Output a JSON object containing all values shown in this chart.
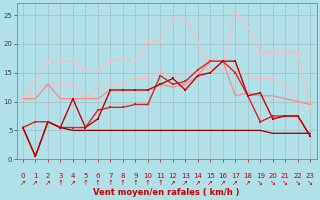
{
  "title": "",
  "xlabel": "Vent moyen/en rafales ( km/h )",
  "ylabel": "",
  "xlim": [
    -0.5,
    23.5
  ],
  "ylim": [
    0,
    27
  ],
  "yticks": [
    0,
    5,
    10,
    15,
    20,
    25
  ],
  "xticks": [
    0,
    1,
    2,
    3,
    4,
    5,
    6,
    7,
    8,
    9,
    10,
    11,
    12,
    13,
    14,
    15,
    16,
    17,
    18,
    19,
    20,
    21,
    22,
    23
  ],
  "xticklabels": [
    "0",
    "1",
    "2",
    "3",
    "4",
    "5",
    "6",
    "7",
    "8",
    "9",
    "10",
    "11",
    "12",
    "13",
    "14",
    "15",
    "16",
    "17",
    "18",
    "19",
    "20",
    "21",
    "22",
    "23"
  ],
  "background_color": "#b0e0e8",
  "grid_color": "#999999",
  "series": [
    {
      "name": "light_pink_high",
      "x": [
        0,
        1,
        2,
        3,
        4,
        5,
        6,
        7,
        8,
        9,
        10,
        11,
        12,
        13,
        14,
        15,
        16,
        17,
        18,
        19,
        20,
        21,
        22,
        23
      ],
      "y": [
        10.5,
        12,
        13,
        13,
        13,
        10.5,
        12.5,
        13,
        13,
        14,
        14,
        15.5,
        14,
        15,
        14.5,
        17.5,
        17,
        15.5,
        14.5,
        14,
        14,
        13,
        10,
        9.5
      ],
      "color": "#ffbbbb",
      "linewidth": 0.9,
      "marker": null,
      "markersize": 0,
      "alpha": 1.0
    },
    {
      "name": "light_pink_high2",
      "x": [
        0,
        2,
        3,
        4,
        5,
        6,
        7,
        8,
        9,
        10,
        11,
        12,
        13,
        14,
        15,
        16,
        17,
        18,
        19,
        20,
        21,
        22,
        23
      ],
      "y": [
        10.5,
        17,
        17,
        17,
        15.5,
        15.5,
        17,
        17.5,
        17,
        20.5,
        20.5,
        24.5,
        24,
        20.5,
        15.5,
        15.5,
        25.5,
        23,
        18.5,
        18.5,
        18.5,
        18.5,
        9
      ],
      "color": "#ffbbbb",
      "linewidth": 0.9,
      "marker": "D",
      "markersize": 1.8,
      "alpha": 1.0
    },
    {
      "name": "medium_pink",
      "x": [
        0,
        1,
        2,
        3,
        4,
        5,
        6,
        7,
        8,
        9,
        10,
        11,
        12,
        13,
        14,
        15,
        16,
        17,
        18,
        19,
        20,
        21,
        22,
        23
      ],
      "y": [
        10.5,
        10.5,
        13,
        10.5,
        10.5,
        10.5,
        10.5,
        12,
        12,
        12,
        12,
        13,
        12.5,
        13,
        14.5,
        17,
        17,
        11,
        11.5,
        11,
        11,
        10.5,
        10,
        9.5
      ],
      "color": "#ff8888",
      "linewidth": 0.9,
      "marker": null,
      "markersize": 0,
      "alpha": 1.0
    },
    {
      "name": "red_with_markers",
      "x": [
        0,
        1,
        2,
        3,
        4,
        5,
        6,
        7,
        8,
        9,
        10,
        11,
        12,
        13,
        14,
        15,
        16,
        17,
        18,
        19,
        20,
        21,
        22,
        23
      ],
      "y": [
        5.5,
        6.5,
        6.5,
        5.5,
        5.5,
        5.5,
        8.5,
        9,
        9,
        9.5,
        9.5,
        14.5,
        13,
        13.5,
        15.5,
        17,
        17,
        15,
        11,
        6.5,
        7.5,
        7.5,
        7.5,
        4
      ],
      "color": "#dd2222",
      "linewidth": 1.0,
      "marker": "s",
      "markersize": 2.0,
      "alpha": 1.0
    },
    {
      "name": "dark_red_flat",
      "x": [
        0,
        1,
        2,
        3,
        4,
        5,
        6,
        7,
        8,
        9,
        10,
        11,
        12,
        13,
        14,
        15,
        16,
        17,
        18,
        19,
        20,
        21,
        22,
        23
      ],
      "y": [
        5.5,
        0.5,
        6.5,
        5.5,
        5.0,
        5.0,
        5.0,
        5.0,
        5.0,
        5.0,
        5.0,
        5.0,
        5.0,
        5.0,
        5.0,
        5.0,
        5.0,
        5.0,
        5.0,
        5.0,
        4.5,
        4.5,
        4.5,
        4.5
      ],
      "color": "#880000",
      "linewidth": 0.9,
      "marker": null,
      "markersize": 0,
      "alpha": 1.0
    },
    {
      "name": "dark_red_markers",
      "x": [
        0,
        1,
        2,
        3,
        4,
        5,
        6,
        7,
        8,
        9,
        10,
        11,
        12,
        13,
        14,
        15,
        16,
        17,
        18,
        19,
        20,
        21,
        22,
        23
      ],
      "y": [
        5.5,
        0.5,
        6.5,
        5.5,
        10.5,
        5.5,
        7,
        12,
        12,
        12,
        12,
        13,
        14,
        12,
        14.5,
        15,
        17,
        17,
        11,
        11.5,
        7,
        7.5,
        7.5,
        4
      ],
      "color": "#cc0000",
      "linewidth": 1.0,
      "marker": "s",
      "markersize": 2.0,
      "alpha": 1.0
    }
  ],
  "xlabel_color": "#cc0000",
  "xlabel_fontsize": 6,
  "ytick_color": "#444444",
  "xtick_color": "#cc0000",
  "tick_fontsize": 5,
  "arrow_chars": [
    "↗",
    "↗",
    "↗",
    "↑",
    "↗",
    "↑",
    "↑",
    "↑",
    "↑",
    "↑",
    "↑",
    "↑",
    "↗",
    "↗",
    "↗",
    "↗",
    "↗",
    "↗",
    "↗",
    "↘",
    "↘",
    "↘",
    "↘",
    "↘"
  ]
}
